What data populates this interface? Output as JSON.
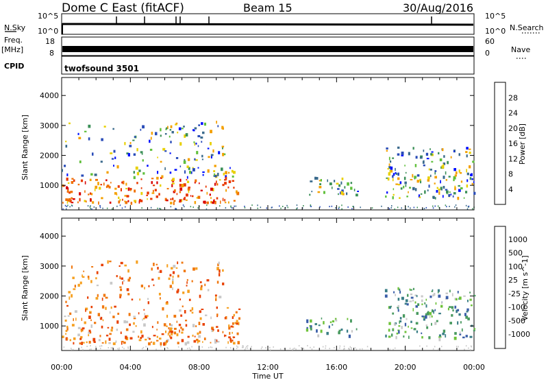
{
  "header": {
    "station": "Dome C East (fitACF)",
    "beam": "Beam 15",
    "date": "30/Aug/2016"
  },
  "params": {
    "nsky_label": "N.Sky",
    "nsky_ticks": [
      "10^5",
      "10^0"
    ],
    "nsearch_label": "N.Search",
    "freq_label": "Freq.",
    "freq_unit": "[MHz]",
    "freq_ticks": [
      "18",
      "8"
    ],
    "nave_label": "Nave",
    "nave_ticks": [
      "60",
      "0"
    ],
    "cpid_label": "CPID",
    "cpid_value": "twofsound 3501"
  },
  "chart_data": [
    {
      "type": "heatmap",
      "panel": "power",
      "ylabel": "Slant Range [km]",
      "xlabel": "Time UT",
      "x_ticks": [
        "00:00",
        "04:00",
        "08:00",
        "12:00",
        "16:00",
        "20:00",
        "00:00"
      ],
      "x_range_hours": [
        0,
        24
      ],
      "y_ticks": [
        1000,
        2000,
        3000,
        4000
      ],
      "ylim": [
        180,
        4600
      ],
      "colorbar": {
        "label": "Power [dB]",
        "ticks": [
          "4",
          "8",
          "12",
          "16",
          "20",
          "24",
          "28"
        ],
        "colors": [
          "#0010ff",
          "#2a4cb8",
          "#3a6a8c",
          "#3c9058",
          "#5fbf3a",
          "#e8d000",
          "#f4a000",
          "#f07000",
          "#e83800",
          "#d80000"
        ]
      },
      "regions": [
        {
          "t0": 0.0,
          "t1": 10.3,
          "r0": 450,
          "r1": 1700,
          "level": 0.6
        },
        {
          "t0": 0.2,
          "t1": 9.5,
          "r0": 1800,
          "r1": 3200,
          "level": 0.3
        },
        {
          "t0": 14.2,
          "t1": 17.2,
          "r0": 700,
          "r1": 1300,
          "level": 0.4
        },
        {
          "t0": 18.8,
          "t1": 24.0,
          "r0": 600,
          "r1": 2300,
          "level": 0.5
        }
      ]
    },
    {
      "type": "heatmap",
      "panel": "velocity",
      "ylabel": "Slant Range [km]",
      "xlabel": "Time UT",
      "x_ticks": [
        "00:00",
        "04:00",
        "08:00",
        "12:00",
        "16:00",
        "20:00",
        "00:00"
      ],
      "x_range_hours": [
        0,
        24
      ],
      "y_ticks": [
        1000,
        2000,
        3000,
        4000
      ],
      "ylim": [
        180,
        4600
      ],
      "colorbar": {
        "label": "Velocity [m s^-1]",
        "ticks": [
          "1000",
          "500",
          "100",
          "25",
          "-25",
          "-100",
          "-500",
          "-1000"
        ],
        "colors": [
          "#1030c0",
          "#3a5ea8",
          "#3a7e86",
          "#4a9a60",
          "#6ec23a",
          "#c8c8c8",
          "#f6c800",
          "#f6a020",
          "#f07810",
          "#e84000",
          "#e00000"
        ]
      },
      "regions": [
        {
          "t0": 0.0,
          "t1": 10.3,
          "r0": 450,
          "r1": 1700,
          "level": 0.6
        },
        {
          "t0": 0.2,
          "t1": 9.5,
          "r0": 1800,
          "r1": 3200,
          "level": 0.3
        },
        {
          "t0": 14.2,
          "t1": 17.2,
          "r0": 700,
          "r1": 1300,
          "level": 0.4
        },
        {
          "t0": 18.8,
          "t1": 24.0,
          "r0": 600,
          "r1": 2300,
          "level": 0.5
        }
      ]
    }
  ]
}
